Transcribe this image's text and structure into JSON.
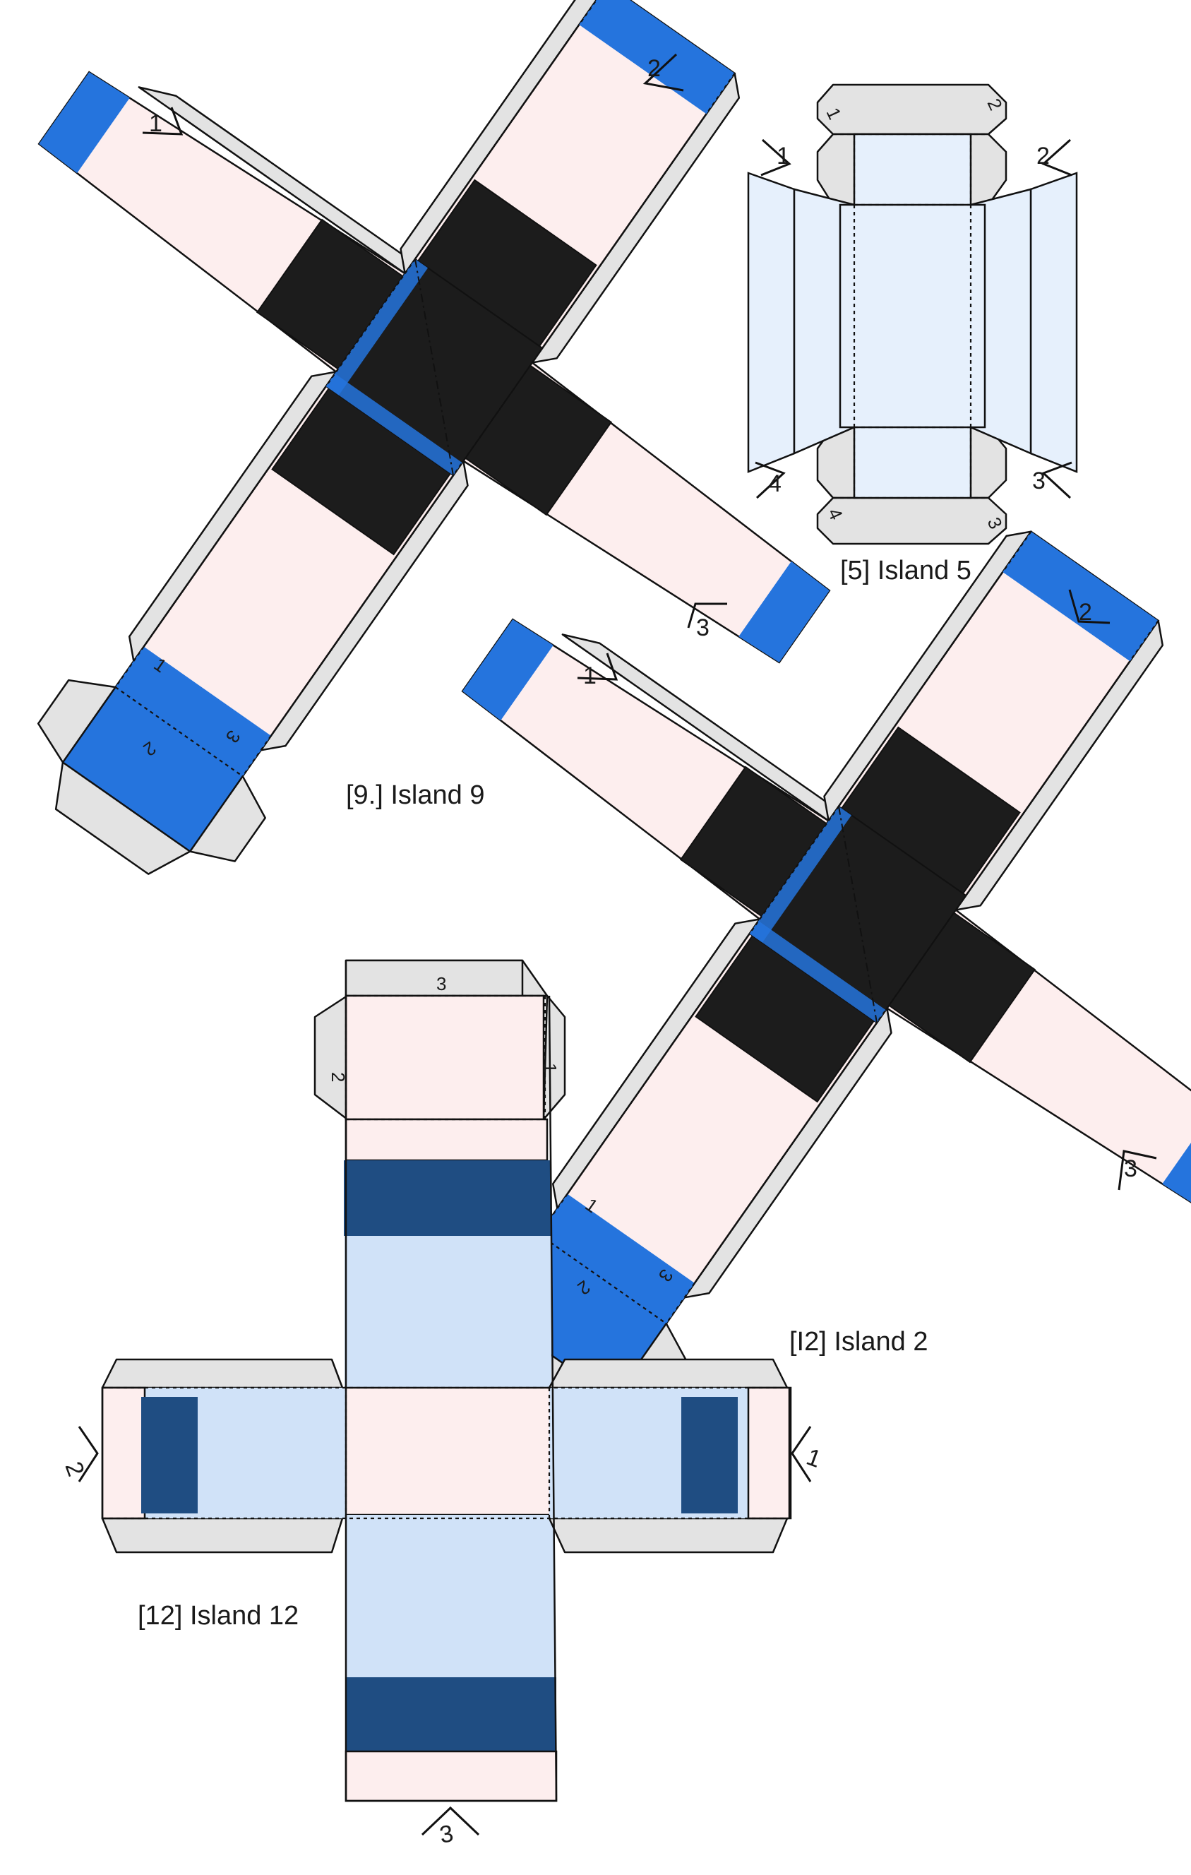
{
  "pieces": {
    "island5": {
      "caption": "[5] Island 5",
      "markers": [
        "1",
        "2",
        "3",
        "4"
      ],
      "tab_labels": [
        "1",
        "2",
        "3",
        "4"
      ]
    },
    "island9": {
      "caption": "[9.] Island 9",
      "markers": [
        "1",
        "2",
        "3"
      ],
      "tab_labels": [
        "1",
        "2",
        "3"
      ]
    },
    "island2": {
      "caption": "[I2] Island 2",
      "markers": [
        "1",
        "2",
        "3"
      ],
      "tab_labels": [
        "1",
        "2",
        "3"
      ]
    },
    "island12": {
      "caption": "[12] Island 12",
      "markers": [
        "1",
        "2",
        "3"
      ],
      "tab_labels": [
        "1",
        "2",
        "3"
      ]
    }
  },
  "colors": {
    "body_pink": "#fdeeee",
    "stripe_blue": "#2574dd",
    "navy_band": "#1f4d82",
    "sky_fill": "#d0e2f8",
    "glue_tab_gray": "#e3e3e3",
    "center_black": "#1c1c1c"
  }
}
